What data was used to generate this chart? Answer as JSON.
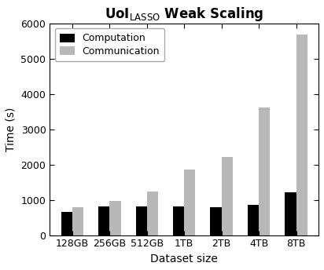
{
  "categories": [
    "128GB",
    "256GB",
    "512GB",
    "1TB",
    "2TB",
    "4TB",
    "8TB"
  ],
  "computation": [
    650,
    820,
    820,
    820,
    800,
    870,
    1220
  ],
  "communication": [
    790,
    960,
    1240,
    1860,
    2210,
    3620,
    5680
  ],
  "computation_color": "#000000",
  "communication_color": "#b8b8b8",
  "title": "UoI$_{\\mathrm{LASSO}}$ Weak Scaling",
  "xlabel": "Dataset size",
  "ylabel": "Time (s)",
  "ylim": [
    0,
    6000
  ],
  "yticks": [
    0,
    1000,
    2000,
    3000,
    4000,
    5000,
    6000
  ],
  "legend_labels": [
    "Computation",
    "Communication"
  ],
  "bar_width": 0.3,
  "figsize": [
    4.12,
    3.44
  ],
  "dpi": 100
}
